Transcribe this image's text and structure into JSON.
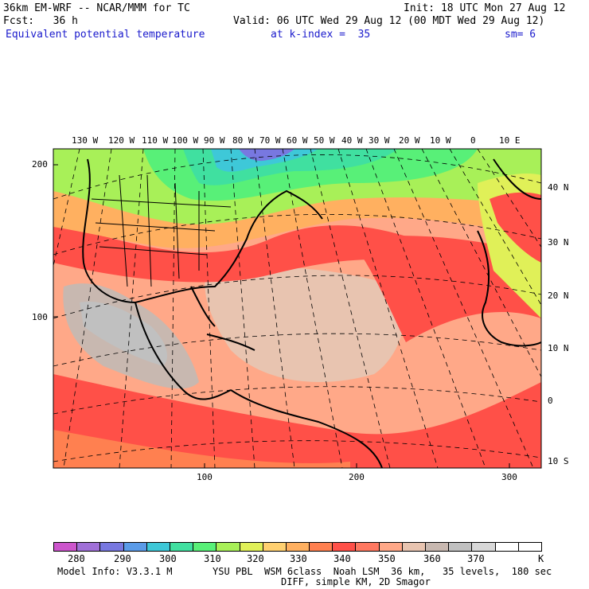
{
  "header": {
    "title": "36km EM-WRF -- NCAR/MMM for TC",
    "init": "Init: 18 UTC Mon 27 Aug 12",
    "fcst": "Fcst:   36 h",
    "valid": "Valid: 06 UTC Wed 29 Aug 12 (00 MDT Wed 29 Aug 12)",
    "field": "Equivalent potential temperature",
    "level": "at k-index =  35",
    "smooth": "sm= 6"
  },
  "top_lon_labels": [
    "130 W",
    "120 W",
    "110 W",
    "100 W",
    "90 W",
    "80 W",
    "70 W",
    "60 W",
    "50 W",
    "40 W",
    "30 W",
    "20 W",
    "10 W",
    "0",
    "10 E"
  ],
  "right_lat_labels": [
    "40 N",
    "30 N",
    "20 N",
    "10 N",
    "0",
    "10 S"
  ],
  "left_grid_labels": [
    "200",
    "100"
  ],
  "bottom_grid_labels": [
    "100",
    "200",
    "300"
  ],
  "colorbar": {
    "colors": [
      "#cc55cc",
      "#a070d8",
      "#7878e0",
      "#5a9be8",
      "#3ec8d8",
      "#40e0a0",
      "#58f078",
      "#a8f058",
      "#e0f058",
      "#ffd070",
      "#ffb060",
      "#ff8050",
      "#ff5048",
      "#ff7860",
      "#ffa888",
      "#e8c4b0",
      "#c8b8b0",
      "#c0c0c0",
      "#d8d8d8",
      "#ffffff",
      "#ffffff"
    ],
    "labels": [
      "280",
      "290",
      "300",
      "310",
      "320",
      "330",
      "340",
      "350",
      "360",
      "370"
    ],
    "unit": "K"
  },
  "footer": {
    "line1_left": "Model Info: V3.3.1 M",
    "line1_right": "YSU PBL  WSM 6class  Noah LSM  36 km,   35 levels,  180 sec",
    "line2": "DIFF, simple KM, 2D Smagor"
  }
}
